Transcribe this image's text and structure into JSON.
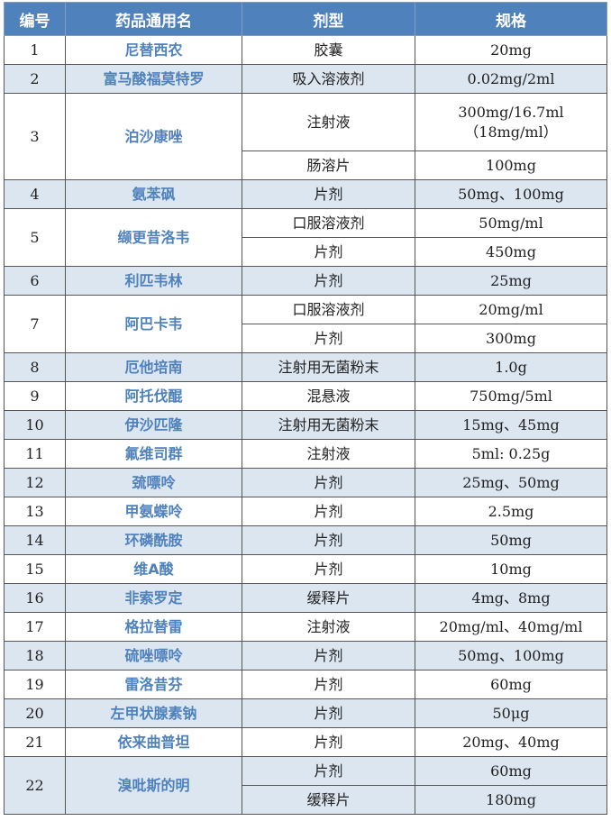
{
  "header": {
    "id": "编号",
    "name": "药品通用名",
    "form": "剂型",
    "spec": "规格"
  },
  "colors": {
    "header_bg": "#4f81bd",
    "name_text": "#4f81bd",
    "shade": "#dce6f1"
  },
  "rows": [
    {
      "id": "1",
      "name": "尼替西农",
      "forms": [
        {
          "form": "胶囊",
          "spec": "20mg"
        }
      ]
    },
    {
      "id": "2",
      "name": "富马酸福莫特罗",
      "forms": [
        {
          "form": "吸入溶液剂",
          "spec": "0.02mg/2ml"
        }
      ]
    },
    {
      "id": "3",
      "name": "泊沙康唑",
      "forms": [
        {
          "form": "注射液",
          "spec": "300mg/16.7ml\n（18mg/ml）"
        },
        {
          "form": "肠溶片",
          "spec": "100mg"
        }
      ]
    },
    {
      "id": "4",
      "name": "氨苯砜",
      "forms": [
        {
          "form": "片剂",
          "spec": "50mg、100mg"
        }
      ]
    },
    {
      "id": "5",
      "name": "缬更昔洛韦",
      "forms": [
        {
          "form": "口服溶液剂",
          "spec": "50mg/ml"
        },
        {
          "form": "片剂",
          "spec": "450mg"
        }
      ]
    },
    {
      "id": "6",
      "name": "利匹韦林",
      "forms": [
        {
          "form": "片剂",
          "spec": "25mg"
        }
      ]
    },
    {
      "id": "7",
      "name": "阿巴卡韦",
      "forms": [
        {
          "form": "口服溶液剂",
          "spec": "20mg/ml"
        },
        {
          "form": "片剂",
          "spec": "300mg"
        }
      ]
    },
    {
      "id": "8",
      "name": "厄他培南",
      "forms": [
        {
          "form": "注射用无菌粉末",
          "spec": "1.0g"
        }
      ]
    },
    {
      "id": "9",
      "name": "阿托伐醌",
      "forms": [
        {
          "form": "混悬液",
          "spec": "750mg/5ml"
        }
      ]
    },
    {
      "id": "10",
      "name": "伊沙匹隆",
      "forms": [
        {
          "form": "注射用无菌粉末",
          "spec": "15mg、45mg"
        }
      ]
    },
    {
      "id": "11",
      "name": "氟维司群",
      "forms": [
        {
          "form": "注射液",
          "spec": "5ml: 0.25g"
        }
      ]
    },
    {
      "id": "12",
      "name": "巯嘌呤",
      "forms": [
        {
          "form": "片剂",
          "spec": "25mg、50mg"
        }
      ]
    },
    {
      "id": "13",
      "name": "甲氨蝶呤",
      "forms": [
        {
          "form": "片剂",
          "spec": "2.5mg"
        }
      ]
    },
    {
      "id": "14",
      "name": "环磷酰胺",
      "forms": [
        {
          "form": "片剂",
          "spec": "50mg"
        }
      ]
    },
    {
      "id": "15",
      "name": "维A酸",
      "forms": [
        {
          "form": "片剂",
          "spec": "10mg"
        }
      ]
    },
    {
      "id": "16",
      "name": "非索罗定",
      "forms": [
        {
          "form": "缓释片",
          "spec": "4mg、8mg"
        }
      ]
    },
    {
      "id": "17",
      "name": "格拉替雷",
      "forms": [
        {
          "form": "注射液",
          "spec": "20mg/ml、40mg/ml"
        }
      ]
    },
    {
      "id": "18",
      "name": "硫唑嘌呤",
      "forms": [
        {
          "form": "片剂",
          "spec": "50mg、100mg"
        }
      ]
    },
    {
      "id": "19",
      "name": "雷洛昔芬",
      "forms": [
        {
          "form": "片剂",
          "spec": "60mg"
        }
      ]
    },
    {
      "id": "20",
      "name": "左甲状腺素钠",
      "forms": [
        {
          "form": "片剂",
          "spec": "50μg"
        }
      ]
    },
    {
      "id": "21",
      "name": "依来曲普坦",
      "forms": [
        {
          "form": "片剂",
          "spec": "20mg、40mg"
        }
      ]
    },
    {
      "id": "22",
      "name": "溴吡斯的明",
      "forms": [
        {
          "form": "片剂",
          "spec": "60mg"
        },
        {
          "form": "缓释片",
          "spec": "180mg"
        }
      ]
    }
  ]
}
